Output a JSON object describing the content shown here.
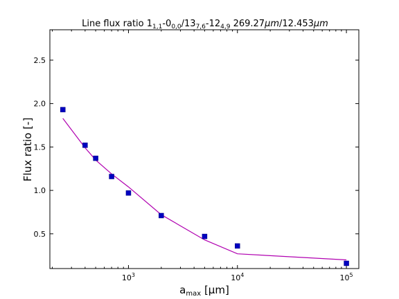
{
  "chart_data": {
    "type": "scatter",
    "title_parts": {
      "prefix": "Line flux ratio 1",
      "sub1": "1,1",
      "mid1": "-0",
      "sub2": "0,0",
      "mid2": "/13",
      "sub3": "7,6",
      "mid3": "-12",
      "sub4": "4,9",
      "mid4": " 269.27",
      "unit1": "μm",
      "mid5": "/12.453",
      "unit2": "μm"
    },
    "xlabel_parts": {
      "base": "a",
      "sub": "max",
      "rest": " [μm]"
    },
    "ylabel": "Flux ratio [-]",
    "xscale": "log",
    "xlim": [
      190,
      130000
    ],
    "ylim": [
      0.1,
      2.85
    ],
    "x_ticks": [
      {
        "value": 1000,
        "base": "10",
        "exp": "3"
      },
      {
        "value": 10000,
        "base": "10",
        "exp": "4"
      },
      {
        "value": 100000,
        "base": "10",
        "exp": "5"
      }
    ],
    "y_ticks": [
      {
        "value": 0.5,
        "label": "0.5"
      },
      {
        "value": 1.0,
        "label": "1.0"
      },
      {
        "value": 1.5,
        "label": "1.5"
      },
      {
        "value": 2.0,
        "label": "2.0"
      },
      {
        "value": 2.5,
        "label": "2.5"
      }
    ],
    "grid": false,
    "series": [
      {
        "kind": "points",
        "color": "#0000c0",
        "x": [
          250,
          400,
          500,
          700,
          1000,
          2000,
          5000,
          10000,
          100000
        ],
        "y": [
          1.93,
          1.52,
          1.37,
          1.16,
          0.97,
          0.71,
          0.47,
          0.36,
          0.16
        ]
      },
      {
        "kind": "line",
        "color": "#b000b0",
        "x": [
          250,
          400,
          500,
          700,
          1000,
          2000,
          5000,
          10000,
          100000
        ],
        "y": [
          1.83,
          1.49,
          1.35,
          1.19,
          1.04,
          0.72,
          0.43,
          0.27,
          0.2
        ]
      }
    ]
  }
}
